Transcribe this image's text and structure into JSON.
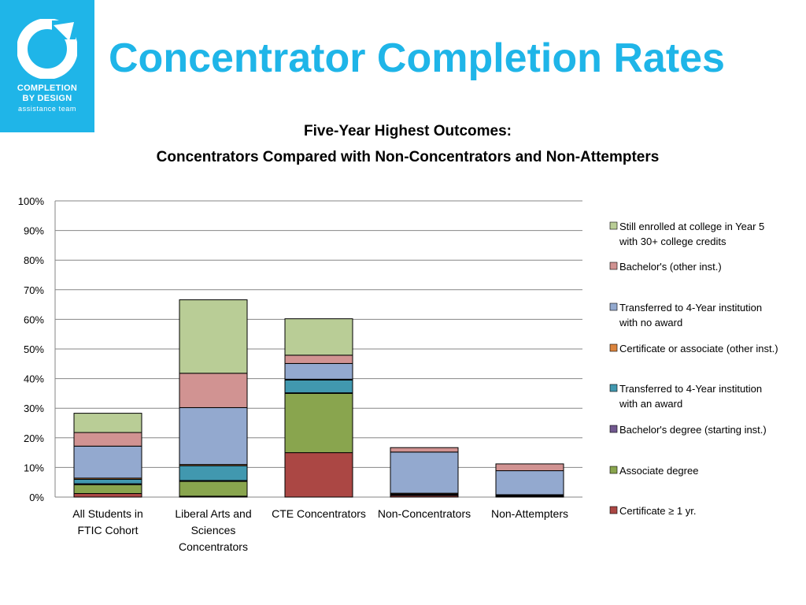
{
  "page": {
    "title": "Concentrator Completion Rates",
    "logo": {
      "line1": "COMPLETION",
      "line2": "BY DESIGN",
      "line3": "assistance team",
      "icon": "completion-by-design-logo-icon"
    }
  },
  "colors": {
    "brand": "#1fb5e8",
    "title": "#1fb5e8"
  },
  "chart_data": {
    "type": "bar",
    "stacked": true,
    "title_line1": "Five-Year Highest Outcomes:",
    "title_line2": "Concentrators Compared with Non-Concentrators and Non-Attempters",
    "categories": [
      [
        "All Students in",
        "FTIC Cohort"
      ],
      [
        "Liberal Arts and",
        "Sciences",
        "Concentrators"
      ],
      [
        "CTE Concentrators"
      ],
      [
        "Non-Concentrators"
      ],
      [
        "Non-Attempters"
      ]
    ],
    "ylim": [
      0,
      100
    ],
    "yticks": [
      "0%",
      "10%",
      "20%",
      "30%",
      "40%",
      "50%",
      "60%",
      "70%",
      "80%",
      "90%",
      "100%"
    ],
    "grid": true,
    "legend_position": "right",
    "series": [
      {
        "name": "Certificate ≥ 1 yr.",
        "color": "#ab4744",
        "values": [
          1.2,
          0.3,
          15,
          0.5,
          0.3
        ]
      },
      {
        "name": "Associate degree",
        "color": "#89a54e",
        "values": [
          3,
          5,
          20,
          0,
          0
        ]
      },
      {
        "name": "Bachelor's degree (starting inst.)",
        "color": "#71588f",
        "values": [
          0.3,
          0.3,
          0.2,
          0.3,
          0.2
        ]
      },
      {
        "name": "Transferred to 4-Year institution with an award",
        "color": "#4198af",
        "values": [
          1.5,
          5,
          4.3,
          0.2,
          0.1
        ]
      },
      {
        "name": "Certificate or associate (other inst.)",
        "color": "#db843d",
        "values": [
          0.4,
          0.4,
          0.3,
          0.3,
          0.2
        ]
      },
      {
        "name": "Transferred to 4-Year institution with no award",
        "color": "#93a9cf",
        "values": [
          10.8,
          19.2,
          5.3,
          13.9,
          8.1
        ]
      },
      {
        "name": "Bachelor's (other inst.)",
        "color": "#d19392",
        "values": [
          4.6,
          11.6,
          2.8,
          1.5,
          2.3
        ]
      },
      {
        "name": "Still enrolled at college in Year 5 with 30+ college credits",
        "color": "#b9cd96",
        "values": [
          6.5,
          24.8,
          12.3,
          0,
          0
        ]
      }
    ],
    "legend": [
      [
        "Still enrolled at college in Year 5",
        "with 30+ college credits"
      ],
      [
        "Bachelor's (other inst.)"
      ],
      [
        "Transferred to 4-Year institution",
        "with no award"
      ],
      [
        "Certificate or associate (other inst.)"
      ],
      [
        "Transferred to 4-Year institution",
        "with an award"
      ],
      [
        "Bachelor's degree (starting inst.)"
      ],
      [
        "Associate degree"
      ],
      [
        "Certificate ≥ 1 yr."
      ]
    ]
  }
}
